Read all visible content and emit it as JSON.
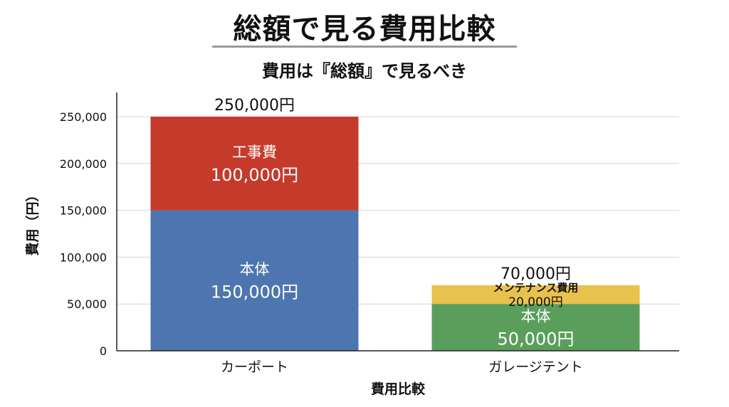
{
  "page": {
    "title": "総額で見る費用比較",
    "subtitle": "費用は『総額』で見るべき"
  },
  "chart_data": {
    "type": "bar",
    "stacked": true,
    "categories": [
      "カーポート",
      "ガレージテント"
    ],
    "xlabel": "費用比較",
    "ylabel": "費用（円）",
    "ylim": [
      0,
      250000
    ],
    "yticks": [
      0,
      50000,
      100000,
      150000,
      200000,
      250000
    ],
    "ytick_labels": [
      "0",
      "50,000",
      "100,000",
      "150,000",
      "200,000",
      "250,000"
    ],
    "grid": true,
    "colors": {
      "工事費": "#c63a2b",
      "本体": "#4d76b0",
      "メンテナンス費用": "#e9c14d",
      "本体_garage": "#5a9e5c"
    },
    "bars": [
      {
        "category": "カーポート",
        "total_label": "250,000円",
        "segments": [
          {
            "name": "本体",
            "value": 150000,
            "value_label": "150,000円",
            "color": "#4d76b0",
            "text_color": "#ffffff"
          },
          {
            "name": "工事費",
            "value": 100000,
            "value_label": "100,000円",
            "color": "#c63a2b",
            "text_color": "#ffffff"
          }
        ]
      },
      {
        "category": "ガレージテント",
        "total_label": "70,000円",
        "segments": [
          {
            "name": "本体",
            "value": 50000,
            "value_label": "50,000円",
            "color": "#5a9e5c",
            "text_color": "#ffffff"
          },
          {
            "name": "メンテナンス費用",
            "value": 20000,
            "value_label": "20,000円",
            "color": "#e9c14d",
            "text_color": "#111111"
          }
        ]
      }
    ]
  }
}
